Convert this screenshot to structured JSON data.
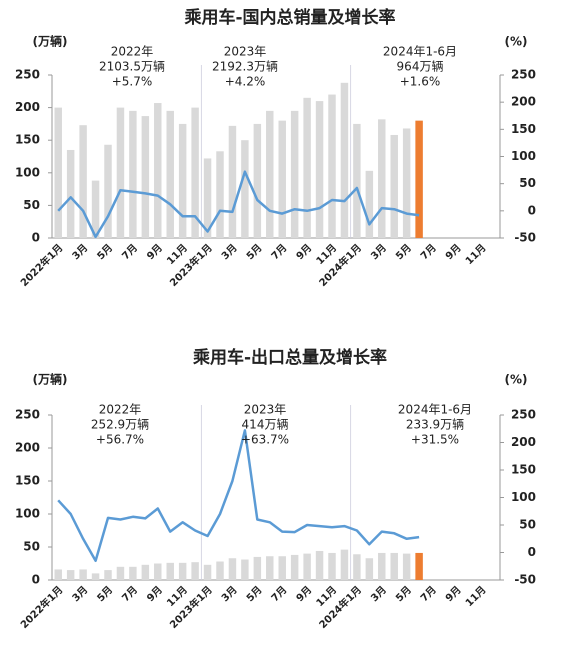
{
  "chart_data": [
    {
      "type": "combo",
      "title": "乘用车-国内总销量及增长率",
      "y_label": "(万辆)",
      "y2_label": "(%)",
      "categories": [
        "2022年1月",
        null,
        "3月",
        null,
        "5月",
        null,
        "7月",
        null,
        "9月",
        null,
        "11月",
        null,
        "2023年1月",
        null,
        "3月",
        null,
        "5月",
        null,
        "7月",
        null,
        "9月",
        null,
        "11月",
        null,
        "2024年1月",
        null,
        "3月",
        null,
        "5月",
        null,
        "7月",
        null,
        "9月",
        null,
        "11月",
        null
      ],
      "series": [
        {
          "type": "bar",
          "colors": [
            "#d9d9d9",
            "#d9d9d9",
            "#d9d9d9",
            "#d9d9d9",
            "#d9d9d9",
            "#d9d9d9",
            "#d9d9d9",
            "#d9d9d9",
            "#d9d9d9",
            "#d9d9d9",
            "#d9d9d9",
            "#d9d9d9",
            "#d9d9d9",
            "#d9d9d9",
            "#d9d9d9",
            "#d9d9d9",
            "#d9d9d9",
            "#d9d9d9",
            "#d9d9d9",
            "#d9d9d9",
            "#d9d9d9",
            "#d9d9d9",
            "#d9d9d9",
            "#d9d9d9",
            "#d9d9d9",
            "#d9d9d9",
            "#d9d9d9",
            "#d9d9d9",
            "#d9d9d9",
            "#ed7d31",
            null,
            null,
            null,
            null,
            null,
            null
          ],
          "values": [
            200,
            135,
            173,
            88,
            143,
            200,
            195,
            187,
            207,
            195,
            175,
            200,
            122,
            133,
            172,
            150,
            175,
            195,
            180,
            195,
            215,
            210,
            220,
            238,
            175,
            103,
            182,
            158,
            168,
            180,
            null,
            null,
            null,
            null,
            null,
            null
          ]
        },
        {
          "type": "line",
          "axis": "y2",
          "color": "#5b9bd5",
          "values": [
            0,
            25,
            0,
            -48,
            -10,
            38,
            35,
            32,
            28,
            12,
            -10,
            -10,
            -38,
            0,
            -2,
            72,
            20,
            0,
            -5,
            3,
            0,
            5,
            20,
            18,
            42,
            -25,
            5,
            3,
            -5,
            -8,
            null,
            null,
            null,
            null,
            null,
            null
          ]
        }
      ],
      "ylim": [
        0,
        250
      ],
      "yticks": [
        0,
        50,
        100,
        150,
        200,
        250
      ],
      "y2lim": [
        -50,
        250
      ],
      "y2ticks": [
        -50,
        0,
        50,
        100,
        150,
        200,
        250
      ],
      "annotations": [
        [
          "2022年",
          "2103.5万辆",
          "+5.7%"
        ],
        [
          "2023年",
          "2192.3万辆",
          "+4.2%"
        ],
        [
          "2024年1-6月",
          "964万辆",
          "+1.6%"
        ]
      ]
    },
    {
      "type": "combo",
      "title": "乘用车-出口总量及增长率",
      "y_label": "(万辆)",
      "y2_label": "(%)",
      "categories": [
        "2022年1月",
        null,
        "3月",
        null,
        "5月",
        null,
        "7月",
        null,
        "9月",
        null,
        "11月",
        null,
        "2023年1月",
        null,
        "3月",
        null,
        "5月",
        null,
        "7月",
        null,
        "9月",
        null,
        "11月",
        null,
        "2024年1月",
        null,
        "3月",
        null,
        "5月",
        null,
        "7月",
        null,
        "9月",
        null,
        "11月",
        null
      ],
      "series": [
        {
          "type": "bar",
          "colors": [
            "#d9d9d9",
            "#d9d9d9",
            "#d9d9d9",
            "#d9d9d9",
            "#d9d9d9",
            "#d9d9d9",
            "#d9d9d9",
            "#d9d9d9",
            "#d9d9d9",
            "#d9d9d9",
            "#d9d9d9",
            "#d9d9d9",
            "#d9d9d9",
            "#d9d9d9",
            "#d9d9d9",
            "#d9d9d9",
            "#d9d9d9",
            "#d9d9d9",
            "#d9d9d9",
            "#d9d9d9",
            "#d9d9d9",
            "#d9d9d9",
            "#d9d9d9",
            "#d9d9d9",
            "#d9d9d9",
            "#d9d9d9",
            "#d9d9d9",
            "#d9d9d9",
            "#d9d9d9",
            "#ed7d31",
            null,
            null,
            null,
            null,
            null,
            null
          ],
          "values": [
            16,
            15,
            16,
            10,
            15,
            20,
            20,
            23,
            25,
            26,
            26,
            27,
            23,
            28,
            33,
            31,
            35,
            36,
            36,
            38,
            40,
            44,
            41,
            46,
            39,
            33,
            41,
            41,
            40,
            41,
            null,
            null,
            null,
            null,
            null,
            null
          ]
        },
        {
          "type": "line",
          "axis": "y2",
          "color": "#5b9bd5",
          "values": [
            95,
            70,
            25,
            -15,
            63,
            60,
            65,
            62,
            80,
            38,
            55,
            40,
            30,
            70,
            130,
            222,
            60,
            55,
            38,
            37,
            50,
            48,
            46,
            48,
            40,
            15,
            38,
            35,
            25,
            28,
            null,
            null,
            null,
            null,
            null,
            null
          ]
        }
      ],
      "ylim": [
        0,
        250
      ],
      "yticks": [
        0,
        50,
        100,
        150,
        200,
        250
      ],
      "y2lim": [
        -50,
        250
      ],
      "y2ticks": [
        -50,
        0,
        50,
        100,
        150,
        200,
        250
      ],
      "annotations": [
        [
          "2022年",
          "252.9万辆",
          "+56.7%"
        ],
        [
          "2023年",
          "414万辆",
          "+63.7%"
        ],
        [
          "2024年1-6月",
          "233.9万辆",
          "+31.5%"
        ]
      ]
    }
  ]
}
